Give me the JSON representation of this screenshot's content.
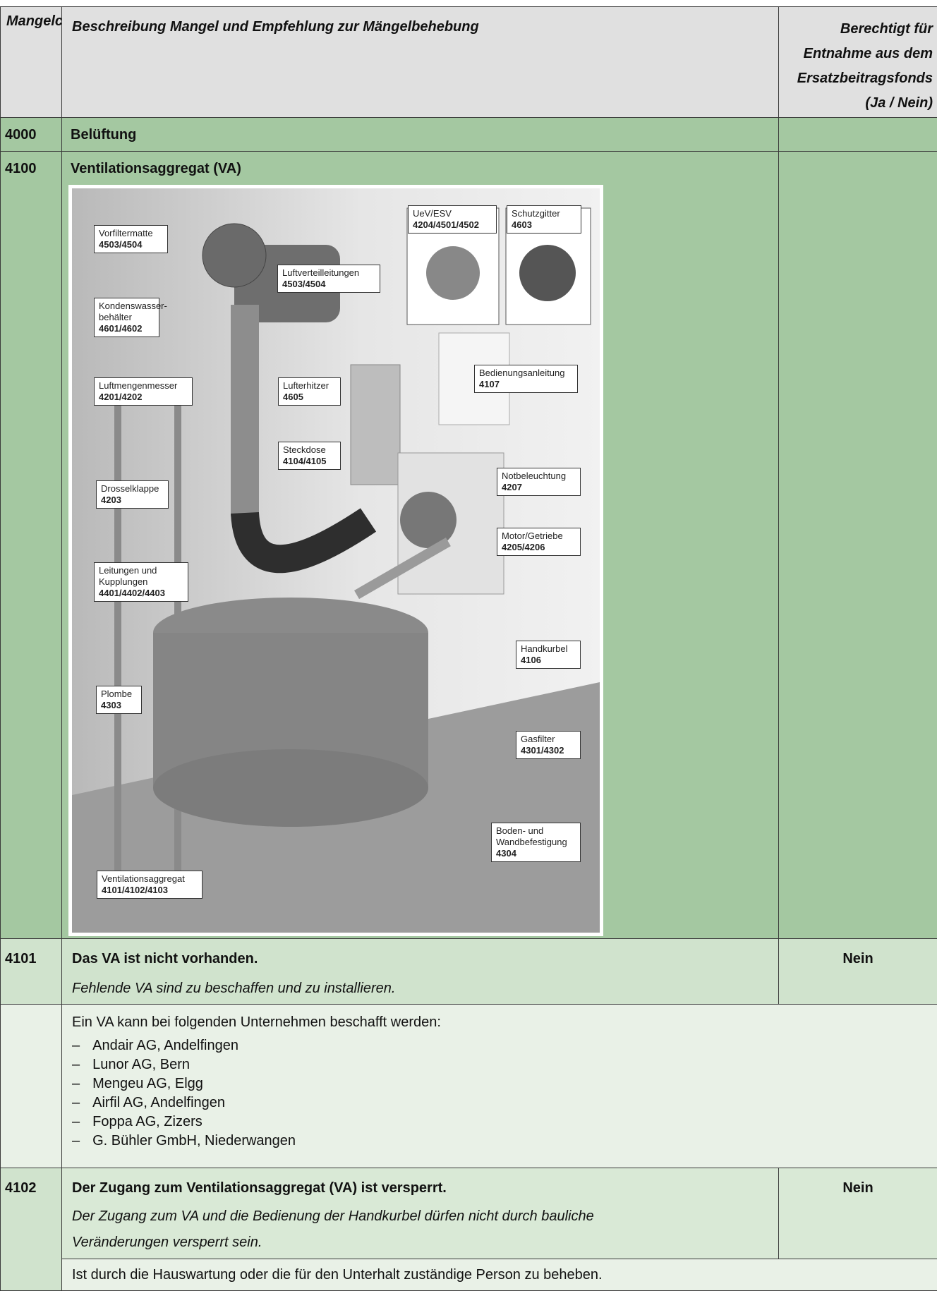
{
  "table": {
    "header": [
      "Mangelcode",
      "Beschreibung Mangel und Empfehlung zur Mängelbehebung",
      "Berechtigt für Entnahme aus dem Ersatzbeitragsfonds (Ja / Nein)"
    ],
    "rows": [
      {
        "code": "4000",
        "title": "Belüftung"
      },
      {
        "code": "4100",
        "title": "Ventilationsaggregat (VA)",
        "photo_labels": [
          {
            "text": "Vorfiltermatte",
            "code": "4503/4504"
          },
          {
            "text": "Luftverteilleitungen",
            "code": "4503/4504"
          },
          {
            "text": "UeV/ESV",
            "code": "4204/4501/4502"
          },
          {
            "text": "Schutzgitter",
            "code": "4603"
          },
          {
            "text": "Kondenswasser-behälter",
            "code": "4601/4602"
          },
          {
            "text": "Luftmengenmesser",
            "code": "4201/4202"
          },
          {
            "text": "Lufterhitzer",
            "code": "4605"
          },
          {
            "text": "Bedienungsanleitung",
            "code": "4107"
          },
          {
            "text": "Steckdose",
            "code": "4104/4105"
          },
          {
            "text": "Drosselklappe",
            "code": "4203"
          },
          {
            "text": "Notbeleuchtung",
            "code": "4207"
          },
          {
            "text": "Motor/Getriebe",
            "code": "4205/4206"
          },
          {
            "text": "Leitungen und Kupplungen",
            "code": "4401/4402/4403"
          },
          {
            "text": "Handkurbel",
            "code": "4106"
          },
          {
            "text": "Plombe",
            "code": "4303"
          },
          {
            "text": "Gasfilter",
            "code": "4301/4302"
          },
          {
            "text": "Boden- und Wandbefestigung",
            "code": "4304"
          },
          {
            "text": "Ventilationsaggregat",
            "code": "4101/4102/4103"
          }
        ]
      },
      {
        "code": "4101",
        "title": "Das VA ist nicht vorhanden.",
        "recommendation": "Fehlende VA sind zu beschaffen und zu installieren.",
        "eligible": "Nein"
      },
      {
        "intro": "Ein VA kann bei folgenden Unternehmen beschafft werden:",
        "list_marker": "–",
        "list": [
          "Andair AG, Andelfingen",
          "Lunor AG, Bern",
          "Mengeu AG, Elgg",
          "Airfil AG, Andelfingen",
          "Foppa AG, Zizers",
          "G. Bühler GmbH, Niederwangen"
        ]
      },
      {
        "code": "4102",
        "title": "Der Zugang zum Ventilationsaggregat (VA) ist versperrt.",
        "recommendation": "Der Zugang zum VA und die Bedienung der Handkurbel dürfen nicht durch bauliche Veränderungen versperrt sein.",
        "eligible": "Nein"
      },
      {
        "note": "Ist durch die Hauswartung oder die für den Unterhalt zuständige Person zu beheben."
      }
    ]
  }
}
